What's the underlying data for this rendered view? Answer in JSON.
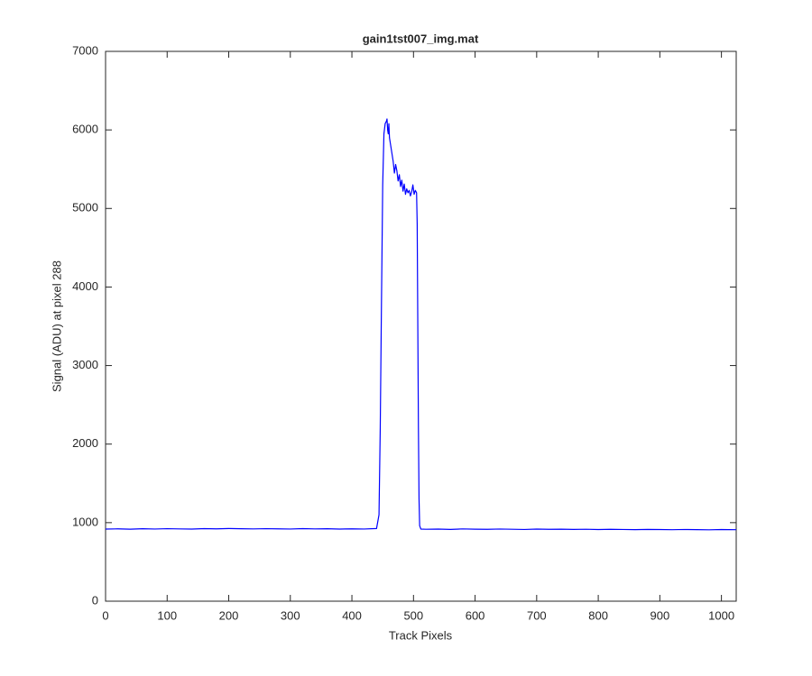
{
  "chart_data": {
    "type": "line",
    "title": "gain1tst007_img.mat",
    "xlabel": "Track Pixels",
    "ylabel": "Signal (ADU) at pixel 288",
    "x": [
      0,
      20,
      40,
      60,
      80,
      100,
      120,
      140,
      160,
      180,
      200,
      220,
      240,
      260,
      280,
      300,
      320,
      340,
      360,
      380,
      400,
      420,
      440,
      444,
      446,
      448,
      450,
      452,
      454,
      456,
      457,
      458,
      459,
      460,
      461,
      463,
      465,
      467,
      469,
      471,
      473,
      475,
      477,
      479,
      481,
      483,
      485,
      487,
      489,
      491,
      493,
      495,
      497,
      499,
      501,
      503,
      505,
      506,
      507,
      508,
      509,
      510,
      512,
      520,
      540,
      560,
      580,
      600,
      620,
      640,
      660,
      680,
      700,
      720,
      740,
      760,
      780,
      800,
      820,
      840,
      860,
      880,
      900,
      920,
      940,
      960,
      980,
      1000,
      1024
    ],
    "series": [
      {
        "color": "#0000ff",
        "values": [
          918,
          921,
          917,
          922,
          919,
          923,
          920,
          918,
          924,
          921,
          925,
          922,
          920,
          923,
          921,
          919,
          924,
          920,
          922,
          918,
          921,
          919,
          925,
          1100,
          2200,
          3800,
          5300,
          5950,
          6080,
          6110,
          6140,
          6000,
          5950,
          6080,
          5900,
          5800,
          5700,
          5600,
          5450,
          5560,
          5480,
          5350,
          5430,
          5280,
          5360,
          5220,
          5310,
          5180,
          5250,
          5200,
          5230,
          5160,
          5210,
          5300,
          5180,
          5230,
          5200,
          4800,
          3500,
          2200,
          1300,
          960,
          918,
          916,
          918,
          914,
          920,
          917,
          915,
          919,
          916,
          913,
          918,
          915,
          917,
          914,
          916,
          912,
          915,
          913,
          911,
          914,
          912,
          910,
          913,
          911,
          909,
          912,
          910
        ]
      }
    ],
    "xlim": [
      0,
      1024
    ],
    "ylim": [
      0,
      7000
    ],
    "xticks": [
      0,
      100,
      200,
      300,
      400,
      500,
      600,
      700,
      800,
      900,
      1000
    ],
    "yticks": [
      0,
      1000,
      2000,
      3000,
      4000,
      5000,
      6000,
      7000
    ]
  }
}
